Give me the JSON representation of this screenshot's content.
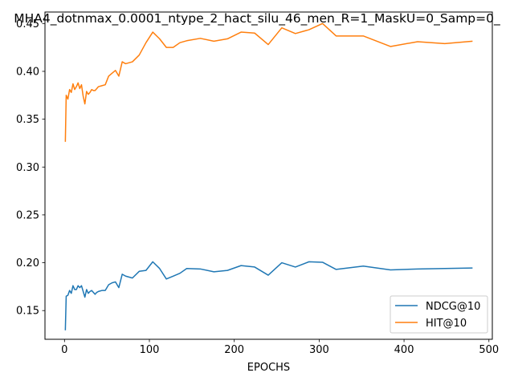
{
  "chart_data": {
    "type": "line",
    "title": "MHA4_dotnmax_0.0001_ntype_2_hact_silu_46_men_R=1_MaskU=0_Samp=0_",
    "xlabel": "EPOCHS",
    "ylabel": "",
    "xlim": [
      -23,
      504
    ],
    "ylim": [
      0.12,
      0.462
    ],
    "xticks": [
      0,
      100,
      200,
      300,
      400,
      500
    ],
    "yticks": [
      0.15,
      0.2,
      0.25,
      0.3,
      0.35,
      0.4,
      0.45
    ],
    "ytick_labels": [
      "0.15",
      "0.20",
      "0.25",
      "0.30",
      "0.35",
      "0.40",
      "0.45"
    ],
    "legend_position": "lower-right",
    "grid": false,
    "series": [
      {
        "name": "NDCG@10",
        "color": "#1f77b4",
        "x": [
          1,
          2,
          4,
          6,
          8,
          10,
          12,
          14,
          16,
          18,
          20,
          22,
          24,
          26,
          28,
          30,
          32,
          34,
          36,
          38,
          40,
          44,
          48,
          52,
          56,
          60,
          64,
          68,
          72,
          80,
          88,
          96,
          104,
          112,
          120,
          128,
          136,
          144,
          160,
          176,
          192,
          208,
          224,
          240,
          256,
          272,
          288,
          304,
          320,
          352,
          384,
          416,
          448,
          480
        ],
        "values": [
          0.13,
          0.165,
          0.166,
          0.171,
          0.168,
          0.176,
          0.172,
          0.172,
          0.176,
          0.174,
          0.176,
          0.17,
          0.164,
          0.172,
          0.168,
          0.17,
          0.171,
          0.169,
          0.167,
          0.169,
          0.17,
          0.171,
          0.171,
          0.177,
          0.179,
          0.18,
          0.174,
          0.188,
          0.186,
          0.184,
          0.191,
          0.192,
          0.201,
          0.194,
          0.183,
          0.186,
          0.189,
          0.194,
          0.1935,
          0.1905,
          0.192,
          0.197,
          0.1955,
          0.187,
          0.2,
          0.1955,
          0.201,
          0.2005,
          0.193,
          0.1965,
          0.1925,
          0.1935,
          0.194,
          0.1945
        ]
      },
      {
        "name": "HIT@10",
        "color": "#ff7f0e",
        "x": [
          1,
          2,
          4,
          6,
          8,
          10,
          12,
          14,
          16,
          18,
          20,
          22,
          24,
          26,
          28,
          30,
          32,
          34,
          36,
          38,
          40,
          44,
          48,
          52,
          56,
          60,
          64,
          68,
          72,
          80,
          88,
          96,
          104,
          112,
          120,
          128,
          136,
          144,
          160,
          176,
          192,
          208,
          224,
          240,
          256,
          272,
          288,
          304,
          320,
          352,
          384,
          416,
          448,
          480
        ],
        "values": [
          0.327,
          0.375,
          0.371,
          0.381,
          0.378,
          0.387,
          0.381,
          0.384,
          0.388,
          0.382,
          0.386,
          0.374,
          0.366,
          0.379,
          0.376,
          0.378,
          0.381,
          0.38,
          0.38,
          0.382,
          0.384,
          0.385,
          0.386,
          0.395,
          0.398,
          0.401,
          0.395,
          0.41,
          0.408,
          0.41,
          0.417,
          0.43,
          0.441,
          0.434,
          0.425,
          0.425,
          0.43,
          0.432,
          0.4345,
          0.4315,
          0.434,
          0.441,
          0.44,
          0.428,
          0.4455,
          0.4395,
          0.4435,
          0.45,
          0.437,
          0.437,
          0.426,
          0.431,
          0.429,
          0.4315
        ]
      }
    ]
  }
}
